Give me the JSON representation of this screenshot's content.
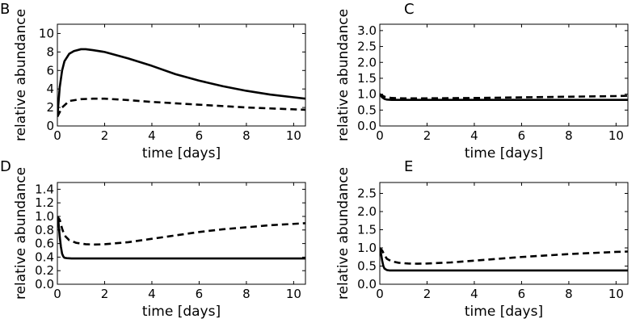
{
  "chart_data": [
    {
      "type": "line",
      "panel_label": "B",
      "xlabel": "time [days]",
      "ylabel": "relative abundance",
      "xlim": [
        0,
        10.5
      ],
      "ylim": [
        0,
        11
      ],
      "xticks": [
        0,
        2,
        4,
        6,
        8,
        10
      ],
      "xtick_labels": [
        "0",
        "2",
        "4",
        "6",
        "8",
        "10"
      ],
      "yticks": [
        0,
        2,
        4,
        6,
        8,
        10
      ],
      "ytick_labels": [
        "0",
        "2",
        "4",
        "6",
        "8",
        "10"
      ],
      "grid": false,
      "series": [
        {
          "style": "solid",
          "color": "#000000",
          "x": [
            0,
            0.1,
            0.2,
            0.3,
            0.5,
            0.7,
            1.0,
            1.2,
            1.5,
            2,
            3,
            4,
            5,
            6,
            7,
            8,
            9,
            10,
            10.5
          ],
          "y": [
            1.0,
            4.2,
            6.0,
            7.0,
            7.8,
            8.1,
            8.3,
            8.3,
            8.2,
            8.0,
            7.3,
            6.5,
            5.6,
            4.9,
            4.3,
            3.8,
            3.4,
            3.1,
            2.95
          ]
        },
        {
          "style": "dashed",
          "color": "#000000",
          "x": [
            0,
            0.2,
            0.5,
            1,
            1.5,
            2,
            3,
            4,
            5,
            6,
            7,
            8,
            9,
            10,
            10.5
          ],
          "y": [
            1.0,
            2.0,
            2.7,
            2.9,
            2.95,
            2.95,
            2.8,
            2.6,
            2.45,
            2.3,
            2.15,
            2.0,
            1.9,
            1.8,
            1.75
          ]
        }
      ]
    },
    {
      "type": "line",
      "panel_label": "C",
      "xlabel": "time [days]",
      "ylabel": "relative abundance",
      "xlim": [
        0,
        10.5
      ],
      "ylim": [
        0,
        3.2
      ],
      "xticks": [
        0,
        2,
        4,
        6,
        8,
        10
      ],
      "xtick_labels": [
        "0",
        "2",
        "4",
        "6",
        "8",
        "10"
      ],
      "yticks": [
        0,
        0.5,
        1.0,
        1.5,
        2.0,
        2.5,
        3.0
      ],
      "ytick_labels": [
        "0.0",
        "0.5",
        "1.0",
        "1.5",
        "2.0",
        "2.5",
        "3.0"
      ],
      "grid": false,
      "series": [
        {
          "style": "solid",
          "color": "#000000",
          "x": [
            0,
            0.1,
            0.2,
            0.3,
            0.5,
            1,
            2,
            4,
            6,
            8,
            10,
            10.5
          ],
          "y": [
            1.0,
            0.9,
            0.85,
            0.83,
            0.82,
            0.82,
            0.82,
            0.82,
            0.82,
            0.82,
            0.82,
            0.82
          ]
        },
        {
          "style": "dashed",
          "color": "#000000",
          "x": [
            0,
            0.2,
            0.5,
            1,
            2,
            4,
            6,
            8,
            10,
            10.5
          ],
          "y": [
            1.0,
            0.92,
            0.88,
            0.87,
            0.87,
            0.88,
            0.9,
            0.92,
            0.94,
            0.95
          ]
        }
      ]
    },
    {
      "type": "line",
      "panel_label": "D",
      "xlabel": "time [days]",
      "ylabel": "relative abundance",
      "xlim": [
        0,
        10.5
      ],
      "ylim": [
        0,
        1.5
      ],
      "xticks": [
        0,
        2,
        4,
        6,
        8,
        10
      ],
      "xtick_labels": [
        "0",
        "2",
        "4",
        "6",
        "8",
        "10"
      ],
      "yticks": [
        0,
        0.2,
        0.4,
        0.6,
        0.8,
        1.0,
        1.2,
        1.4
      ],
      "ytick_labels": [
        "0.0",
        "0.2",
        "0.4",
        "0.6",
        "0.8",
        "1.0",
        "1.2",
        "1.4"
      ],
      "grid": false,
      "series": [
        {
          "style": "solid",
          "color": "#000000",
          "x": [
            0,
            0.05,
            0.1,
            0.15,
            0.2,
            0.25,
            0.3,
            0.4,
            0.6,
            1,
            2,
            4,
            6,
            8,
            10,
            10.5
          ],
          "y": [
            1.0,
            0.9,
            0.7,
            0.55,
            0.45,
            0.41,
            0.39,
            0.385,
            0.38,
            0.38,
            0.38,
            0.38,
            0.38,
            0.38,
            0.38,
            0.38
          ]
        },
        {
          "style": "dashed",
          "color": "#000000",
          "x": [
            0,
            0.1,
            0.2,
            0.3,
            0.5,
            0.8,
            1.2,
            1.6,
            2,
            3,
            4,
            5,
            6,
            7,
            8,
            9,
            10,
            10.5
          ],
          "y": [
            1.0,
            0.95,
            0.82,
            0.72,
            0.65,
            0.61,
            0.59,
            0.585,
            0.59,
            0.62,
            0.67,
            0.72,
            0.77,
            0.81,
            0.84,
            0.87,
            0.89,
            0.9
          ]
        }
      ]
    },
    {
      "type": "line",
      "panel_label": "E",
      "xlabel": "time [days]",
      "ylabel": "relative abundance",
      "xlim": [
        0,
        10.5
      ],
      "ylim": [
        0,
        2.8
      ],
      "xticks": [
        0,
        2,
        4,
        6,
        8,
        10
      ],
      "xtick_labels": [
        "0",
        "2",
        "4",
        "6",
        "8",
        "10"
      ],
      "yticks": [
        0,
        0.5,
        1.0,
        1.5,
        2.0,
        2.5
      ],
      "ytick_labels": [
        "0.0",
        "0.5",
        "1.0",
        "1.5",
        "2.0",
        "2.5"
      ],
      "grid": false,
      "series": [
        {
          "style": "solid",
          "color": "#000000",
          "x": [
            0,
            0.05,
            0.1,
            0.15,
            0.2,
            0.3,
            0.4,
            0.6,
            1,
            2,
            4,
            6,
            8,
            10,
            10.5
          ],
          "y": [
            1.0,
            0.85,
            0.65,
            0.5,
            0.43,
            0.39,
            0.38,
            0.38,
            0.38,
            0.38,
            0.38,
            0.38,
            0.38,
            0.38,
            0.38
          ]
        },
        {
          "style": "dashed",
          "color": "#000000",
          "x": [
            0,
            0.1,
            0.2,
            0.3,
            0.5,
            0.8,
            1.2,
            1.6,
            2,
            3,
            4,
            5,
            6,
            7,
            8,
            9,
            10,
            10.5
          ],
          "y": [
            1.0,
            0.93,
            0.8,
            0.7,
            0.63,
            0.59,
            0.57,
            0.565,
            0.57,
            0.6,
            0.65,
            0.7,
            0.75,
            0.79,
            0.83,
            0.86,
            0.89,
            0.9
          ]
        }
      ]
    }
  ]
}
